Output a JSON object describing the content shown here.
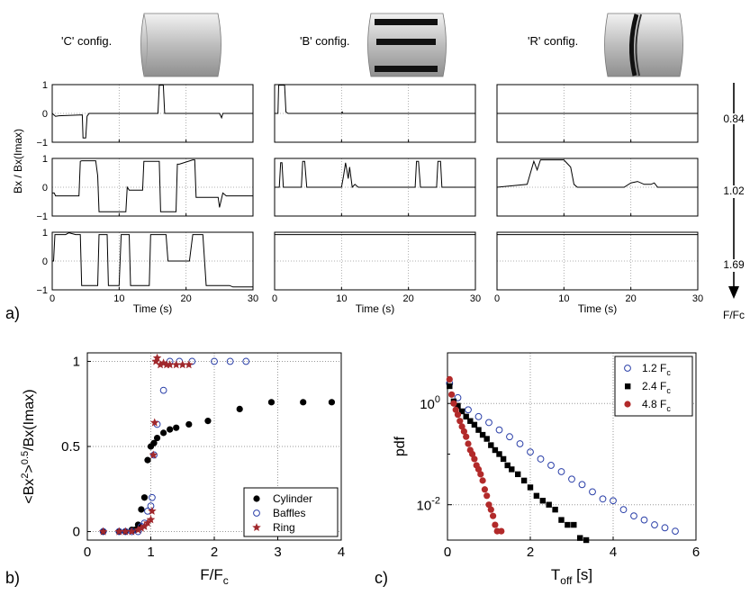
{
  "configs": [
    {
      "label": "'C' config.",
      "type": "plain"
    },
    {
      "label": "'B' config.",
      "type": "baffles"
    },
    {
      "label": "'R' config.",
      "type": "ring"
    }
  ],
  "panel_labels": {
    "a": "a)",
    "b": "b)",
    "c": "c)"
  },
  "panel_a": {
    "ylabel": "Bx / Bx(Imax)",
    "xlabel": "Time (s)",
    "xlim": [
      0,
      30
    ],
    "ylim": [
      -1,
      1
    ],
    "xticks": [
      "0",
      "10",
      "20",
      "30"
    ],
    "yticks": [
      "1",
      "0",
      "−1"
    ],
    "row_values": [
      "0.84",
      "1.02",
      "1.69"
    ],
    "arrow_label": "F/Fc"
  },
  "chart_data": [
    {
      "type": "line",
      "title": "",
      "xlabel": "Time (s)",
      "ylabel": "Bx / Bx(Imax)",
      "xlim": [
        0,
        30
      ],
      "ylim": [
        -1,
        1
      ],
      "grid": true,
      "panels": [
        {
          "config": "'C' config.",
          "F_Fc": "0.84",
          "x": [
            0,
            0.5,
            1,
            4.5,
            4.6,
            5,
            5.2,
            5.5,
            6,
            15.8,
            16,
            16.6,
            16.8,
            25,
            25.3,
            25.5,
            30
          ],
          "y": [
            0,
            -0.1,
            -0.08,
            -0.05,
            -0.85,
            -0.85,
            -0.1,
            0,
            0,
            0,
            0.98,
            0.98,
            0,
            0,
            -0.15,
            0,
            0
          ]
        },
        {
          "config": "'C' config.",
          "F_Fc": "1.02",
          "x": [
            0,
            0.3,
            0.5,
            4,
            4.2,
            4.4,
            6.5,
            6.8,
            7,
            11,
            11.2,
            11.5,
            13.5,
            13.7,
            13.9,
            16,
            16.2,
            16.4,
            18.5,
            18.7,
            19,
            21,
            21.3,
            21.5,
            24.8,
            25,
            25.5,
            26,
            26.5,
            30
          ],
          "y": [
            -0.2,
            -0.2,
            -0.3,
            -0.3,
            0.9,
            0.92,
            0.92,
            0.4,
            -0.85,
            -0.85,
            0,
            -0.1,
            -0.1,
            0.9,
            0.9,
            0.9,
            -0.85,
            -0.85,
            -0.85,
            0.8,
            0.8,
            0.95,
            0.95,
            -0.35,
            -0.35,
            -0.7,
            -0.2,
            -0.3,
            -0.3,
            -0.3
          ]
        },
        {
          "config": "'C' config.",
          "F_Fc": "1.69",
          "x": [
            0,
            0.2,
            0.4,
            2,
            2.5,
            3.5,
            4.2,
            4.4,
            5,
            5.5,
            6.8,
            7,
            8.2,
            8.4,
            10,
            10.3,
            11.5,
            11.7,
            13,
            13.5,
            14.5,
            14.7,
            17,
            17.3,
            20.5,
            21,
            22.5,
            23,
            26.5,
            27,
            30
          ],
          "y": [
            0,
            0,
            0.92,
            0.92,
            0.98,
            0.92,
            0.92,
            -0.85,
            -0.85,
            -0.85,
            -0.85,
            0.92,
            0.92,
            -0.85,
            -0.85,
            0.92,
            0.92,
            -0.85,
            -0.85,
            -0.85,
            -0.85,
            0.92,
            0.92,
            0,
            0,
            0.92,
            0.92,
            -0.85,
            -0.85,
            -0.9,
            -0.9
          ]
        },
        {
          "config": "'B' config.",
          "F_Fc": "0.84",
          "x": [
            0,
            0.5,
            0.6,
            1.5,
            1.7,
            2,
            10,
            10.1,
            10.2,
            30
          ],
          "y": [
            0,
            0,
            0.98,
            0.98,
            0.05,
            0,
            0,
            0.05,
            0,
            0
          ]
        },
        {
          "config": "'B' config.",
          "F_Fc": "1.02",
          "x": [
            0,
            0.7,
            0.9,
            1.1,
            1.3,
            4,
            4.2,
            4.5,
            4.8,
            10,
            10.3,
            10.6,
            11,
            11.2,
            11.6,
            12,
            12.5,
            21,
            21.2,
            21.5,
            21.8,
            24.2,
            24.4,
            24.8,
            25,
            30
          ],
          "y": [
            0,
            0,
            0.85,
            0.85,
            0,
            0,
            0.9,
            0.9,
            0,
            0,
            0.4,
            0.85,
            0.3,
            0.7,
            0,
            0.1,
            0,
            0,
            0.9,
            0.9,
            0,
            0,
            0.9,
            0.9,
            0,
            0
          ]
        },
        {
          "config": "'B' config.",
          "F_Fc": "1.69",
          "x": [
            0,
            30
          ],
          "y": [
            0.92,
            0.92
          ]
        },
        {
          "config": "'R' config.",
          "F_Fc": "0.84",
          "x": [
            0,
            30
          ],
          "y": [
            0,
            0
          ]
        },
        {
          "config": "'R' config.",
          "F_Fc": "1.02",
          "x": [
            0,
            4.5,
            5.5,
            6,
            6.5,
            7.5,
            8,
            9,
            10,
            11,
            11.5,
            12,
            15,
            19,
            20,
            21,
            22,
            23,
            23.5,
            24,
            30
          ],
          "y": [
            0,
            0.1,
            0.9,
            0.6,
            0.95,
            0.95,
            0.95,
            0.95,
            0.95,
            0.7,
            0.1,
            0,
            0,
            0,
            0.15,
            0.2,
            0.1,
            0.1,
            0.15,
            0,
            0
          ]
        },
        {
          "config": "'R' config.",
          "F_Fc": "1.69",
          "x": [
            0,
            30
          ],
          "y": [
            0.92,
            0.92
          ]
        }
      ]
    },
    {
      "type": "scatter",
      "title": "",
      "xlabel": "F/F_c",
      "ylabel": "<Bx²>⁰˙⁵/Bx(Imax)",
      "ylabel_parts": {
        "base": "<Bx",
        "sup1": "2",
        "mid": ">",
        "sup2": "0.5",
        "rest": "/Bx(Imax)"
      },
      "xlabel_parts": {
        "base": "F/F",
        "sub": "c"
      },
      "xlim": [
        0,
        4
      ],
      "ylim": [
        -0.05,
        1.05
      ],
      "xticks": [
        "0",
        "1",
        "2",
        "3",
        "4"
      ],
      "yticks": [
        "0",
        "0.5",
        "1"
      ],
      "grid": true,
      "legend_position": "bottom-right",
      "series": [
        {
          "name": "Cylinder",
          "marker": "filled-circle",
          "color": "#000000",
          "x": [
            0.25,
            0.5,
            0.6,
            0.7,
            0.75,
            0.8,
            0.85,
            0.9,
            0.95,
            1.0,
            1.05,
            1.1,
            1.2,
            1.3,
            1.4,
            1.6,
            1.9,
            2.4,
            2.9,
            3.4,
            3.85
          ],
          "y": [
            0,
            0,
            0,
            0.01,
            0.01,
            0.04,
            0.13,
            0.2,
            0.42,
            0.5,
            0.52,
            0.55,
            0.58,
            0.6,
            0.61,
            0.63,
            0.65,
            0.72,
            0.76,
            0.76,
            0.76
          ]
        },
        {
          "name": "Baffles",
          "marker": "open-circle",
          "color": "#2a3fa8",
          "x": [
            0.25,
            0.5,
            0.6,
            0.7,
            0.8,
            0.85,
            0.9,
            0.95,
            1.0,
            1.02,
            1.05,
            1.1,
            1.2,
            1.3,
            1.45,
            1.65,
            2.0,
            2.25,
            2.5
          ],
          "y": [
            0,
            0,
            0,
            0,
            0,
            0.03,
            0.05,
            0.12,
            0.15,
            0.2,
            0.45,
            0.63,
            0.83,
            1.0,
            1.0,
            1.0,
            1.0,
            1.0,
            1.0
          ]
        },
        {
          "name": "Ring",
          "marker": "star",
          "color": "#a0282c",
          "x": [
            0.25,
            0.5,
            0.6,
            0.7,
            0.8,
            0.85,
            0.9,
            0.95,
            1.0,
            1.02,
            1.04,
            1.06,
            1.08,
            1.1,
            1.15,
            1.2,
            1.25,
            1.3,
            1.4,
            1.5,
            1.6
          ],
          "y": [
            0,
            0,
            0,
            0,
            0.01,
            0.02,
            0.03,
            0.05,
            0.07,
            0.12,
            0.45,
            0.64,
            1.0,
            1.02,
            0.98,
            0.99,
            0.98,
            0.98,
            0.98,
            0.98,
            0.98
          ]
        }
      ]
    },
    {
      "type": "scatter",
      "title": "",
      "xlabel": "T_off [s]",
      "xlabel_parts": {
        "base": "T",
        "sub": "off",
        "rest": " [s]"
      },
      "ylabel": "pdf",
      "yscale": "log",
      "xlim": [
        0,
        6
      ],
      "ylim": [
        0.002,
        10
      ],
      "xticks": [
        "0",
        "2",
        "4",
        "6"
      ],
      "grid": true,
      "legend_position": "top-right",
      "series": [
        {
          "name": "1.2 F_c",
          "label_base": "1.2 F",
          "label_sub": "c",
          "marker": "open-circle",
          "color": "#2a3fa8",
          "x": [
            0.05,
            0.25,
            0.5,
            0.75,
            1.0,
            1.25,
            1.5,
            1.75,
            2.0,
            2.25,
            2.5,
            2.75,
            3.0,
            3.25,
            3.5,
            3.75,
            4.0,
            4.25,
            4.5,
            4.75,
            5.0,
            5.25,
            5.5
          ],
          "y": [
            2.5,
            1.3,
            0.75,
            0.55,
            0.42,
            0.3,
            0.22,
            0.16,
            0.11,
            0.08,
            0.06,
            0.045,
            0.032,
            0.025,
            0.018,
            0.013,
            0.012,
            0.008,
            0.006,
            0.005,
            0.004,
            0.0035,
            0.003
          ]
        },
        {
          "name": "2.4 F_c",
          "label_base": "2.4 F",
          "label_sub": "c",
          "marker": "square",
          "color": "#000000",
          "x": [
            0.05,
            0.15,
            0.25,
            0.35,
            0.45,
            0.55,
            0.65,
            0.75,
            0.85,
            0.95,
            1.05,
            1.15,
            1.25,
            1.35,
            1.45,
            1.55,
            1.7,
            1.85,
            2.0,
            2.15,
            2.3,
            2.45,
            2.6,
            2.75,
            2.9,
            3.05,
            3.2,
            3.35
          ],
          "y": [
            2.2,
            1.1,
            0.9,
            0.7,
            0.55,
            0.45,
            0.38,
            0.3,
            0.24,
            0.2,
            0.15,
            0.12,
            0.1,
            0.08,
            0.06,
            0.05,
            0.04,
            0.03,
            0.022,
            0.015,
            0.012,
            0.01,
            0.008,
            0.005,
            0.004,
            0.004,
            0.0022,
            0.002
          ]
        },
        {
          "name": "4.8 F_c",
          "label_base": "4.8 F",
          "label_sub": "c",
          "marker": "filled-circle",
          "color": "#b22a2a",
          "x": [
            0.05,
            0.1,
            0.15,
            0.2,
            0.25,
            0.3,
            0.35,
            0.4,
            0.45,
            0.5,
            0.55,
            0.6,
            0.65,
            0.7,
            0.75,
            0.8,
            0.85,
            0.9,
            0.95,
            1.0,
            1.05,
            1.1,
            1.15,
            1.2,
            1.3
          ],
          "y": [
            3.0,
            1.5,
            1.0,
            0.75,
            0.6,
            0.45,
            0.35,
            0.28,
            0.22,
            0.16,
            0.12,
            0.1,
            0.08,
            0.06,
            0.05,
            0.04,
            0.03,
            0.02,
            0.015,
            0.01,
            0.008,
            0.006,
            0.004,
            0.003,
            0.003
          ]
        }
      ]
    }
  ]
}
